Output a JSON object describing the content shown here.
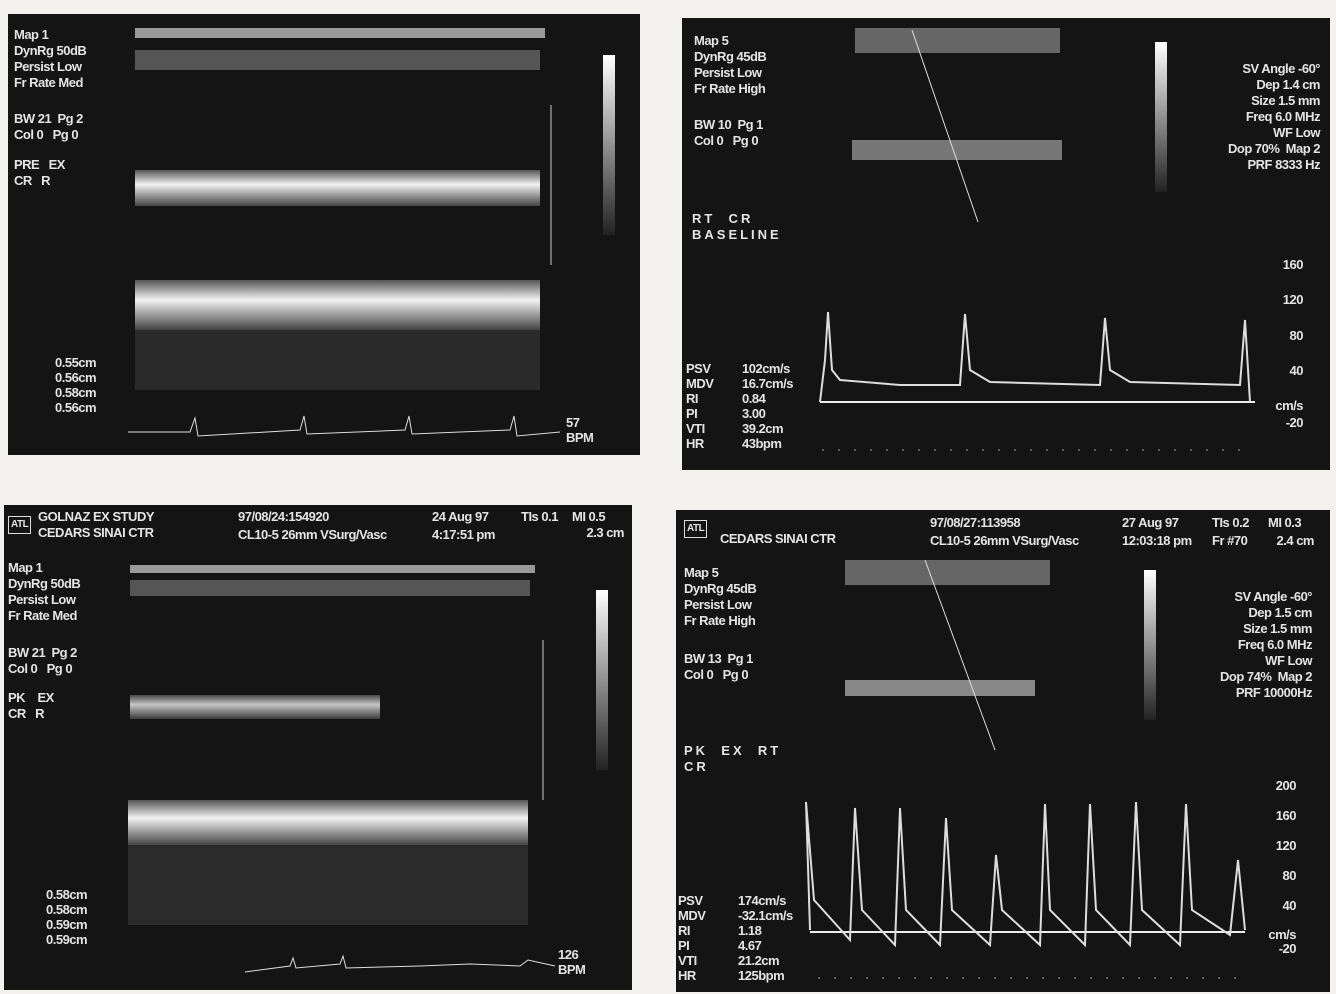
{
  "panels": [
    {
      "settings": [
        "Map 1",
        "DynRg 50dB",
        "Persist Low",
        "Fr Rate Med",
        "BW 21  Pg 2",
        "Col 0   Pg 0",
        "PRE   EX",
        "CR   R"
      ],
      "measures": [
        "0.55cm",
        "0.56cm",
        "0.58cm",
        "0.56cm"
      ],
      "rate": [
        "57",
        "BPM"
      ]
    },
    {
      "settings": [
        "Map 5",
        "DynRg 45dB",
        "Persist Low",
        "Fr Rate High",
        "BW 10  Pg 1",
        "Col 0   Pg 0"
      ],
      "labels": [
        "RT  CR",
        "BASELINE"
      ],
      "params": [
        "SV Angle -60°",
        "Dep 1.4 cm",
        "Size 1.5 mm",
        "Freq 6.0 MHz",
        "WF Low",
        "Dop 70%  Map 2",
        "PRF 8333 Hz"
      ],
      "scale": [
        "160",
        "120",
        "80",
        "40",
        "cm/s",
        "-20"
      ],
      "doppler": [
        {
          "name": "PSV",
          "value": "102cm/s"
        },
        {
          "name": "MDV",
          "value": "16.7cm/s"
        },
        {
          "name": "RI",
          "value": "0.84"
        },
        {
          "name": "PI",
          "value": "3.00"
        },
        {
          "name": "VTI",
          "value": "39.2cm"
        },
        {
          "name": "HR",
          "value": "43bpm"
        }
      ]
    },
    {
      "header": {
        "logo": "ATL",
        "study": [
          "GOLNAZ EX STUDY",
          "CEDARS SINAI CTR"
        ],
        "id": [
          "97/08/24:154920",
          "CL10-5 26mm VSurg/Vasc"
        ],
        "date": [
          "24 Aug 97",
          "4:17:51 pm"
        ],
        "tis": "TIs 0.1",
        "mi": "MI 0.5",
        "depth": "2.3 cm"
      },
      "settings": [
        "Map 1",
        "DynRg 50dB",
        "Persist Low",
        "Fr Rate Med",
        "BW 21  Pg 2",
        "Col 0   Pg 0",
        "PK    EX",
        "CR   R"
      ],
      "measures": [
        "0.58cm",
        "0.58cm",
        "0.59cm",
        "0.59cm"
      ],
      "rate": [
        "126",
        "BPM"
      ]
    },
    {
      "header": {
        "logo": "ATL",
        "study": [
          "CEDARS SINAI CTR"
        ],
        "id": [
          "97/08/27:113958",
          "CL10-5 26mm VSurg/Vasc"
        ],
        "date": [
          "27 Aug 97",
          "12:03:18 pm"
        ],
        "tis": "TIs 0.2",
        "mi": "MI 0.3",
        "frame": "Fr #70",
        "depth": "2.4 cm"
      },
      "settings": [
        "Map 5",
        "DynRg 45dB",
        "Persist Low",
        "Fr Rate High",
        "BW 13  Pg 1",
        "Col 0   Pg 0"
      ],
      "labels": [
        "PK  EX  RT",
        "CR"
      ],
      "params": [
        "SV Angle -60°",
        "Dep 1.5 cm",
        "Size 1.5 mm",
        "Freq 6.0 MHz",
        "WF Low",
        "Dop 74%  Map 2",
        "PRF 10000Hz"
      ],
      "scale": [
        "200",
        "160",
        "120",
        "80",
        "40",
        "cm/s",
        "-20"
      ],
      "doppler": [
        {
          "name": "PSV",
          "value": "174cm/s"
        },
        {
          "name": "MDV",
          "value": "-32.1cm/s"
        },
        {
          "name": "RI",
          "value": "1.18"
        },
        {
          "name": "PI",
          "value": "4.67"
        },
        {
          "name": "VTI",
          "value": "21.2cm"
        },
        {
          "name": "HR",
          "value": "125bpm"
        }
      ]
    }
  ]
}
